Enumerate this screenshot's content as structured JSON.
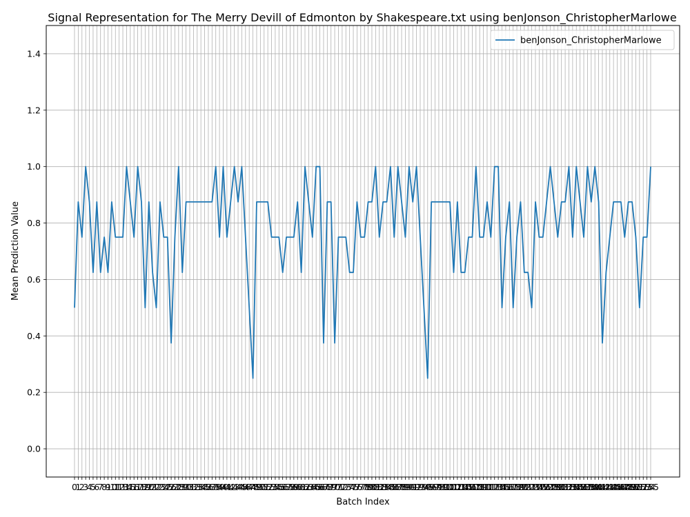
{
  "chart_data": {
    "type": "line",
    "title": "Signal Representation for The Merry Devill of Edmonton by Shakespeare.txt using benJonson_ChristopherMarlowe",
    "xlabel": "Batch Index",
    "ylabel": "Mean Prediction Value",
    "ylim": [
      -0.1,
      1.5
    ],
    "yticks": [
      "0.0",
      "0.2",
      "0.4",
      "0.6",
      "0.8",
      "1.0",
      "1.2",
      "1.4"
    ],
    "grid": true,
    "legend_position": "top-right",
    "line_color": "#1f77b4",
    "grid_color": "#b0b0b0",
    "series": [
      {
        "name": "benJonson_ChristopherMarlowe",
        "values": [
          0.5,
          0.875,
          0.75,
          1.0,
          0.875,
          0.625,
          0.875,
          0.625,
          0.75,
          0.625,
          0.875,
          0.75,
          0.75,
          0.75,
          1.0,
          0.875,
          0.75,
          1.0,
          0.875,
          0.5,
          0.875,
          0.625,
          0.5,
          0.875,
          0.75,
          0.75,
          0.375,
          0.75,
          1.0,
          0.625,
          0.875,
          0.875,
          0.875,
          0.875,
          0.875,
          0.875,
          0.875,
          0.875,
          1.0,
          0.75,
          1.0,
          0.75,
          0.875,
          1.0,
          0.875,
          1.0,
          0.75,
          0.5,
          0.25,
          0.875,
          0.875,
          0.875,
          0.875,
          0.75,
          0.75,
          0.75,
          0.625,
          0.75,
          0.75,
          0.75,
          0.875,
          0.625,
          1.0,
          0.875,
          0.75,
          1.0,
          1.0,
          0.375,
          0.875,
          0.875,
          0.375,
          0.75,
          0.75,
          0.75,
          0.625,
          0.625,
          0.875,
          0.75,
          0.75,
          0.875,
          0.875,
          1.0,
          0.75,
          0.875,
          0.875,
          1.0,
          0.75,
          1.0,
          0.875,
          0.75,
          1.0,
          0.875,
          1.0,
          0.75,
          0.5,
          0.25,
          0.875,
          0.875,
          0.875,
          0.875,
          0.875,
          0.875,
          0.625,
          0.875,
          0.625,
          0.625,
          0.75,
          0.75,
          1.0,
          0.75,
          0.75,
          0.875,
          0.75,
          1.0,
          1.0,
          0.5,
          0.75,
          0.875,
          0.5,
          0.75,
          0.875,
          0.625,
          0.625,
          0.5,
          0.875,
          0.75,
          0.75,
          0.875,
          1.0,
          0.875,
          0.75,
          0.875,
          0.875,
          1.0,
          0.75,
          1.0,
          0.875,
          0.75,
          1.0,
          0.875,
          1.0,
          0.875,
          0.375,
          0.625,
          0.75,
          0.875,
          0.875,
          0.875,
          0.75,
          0.875,
          0.875,
          0.75,
          0.5,
          0.75,
          0.75,
          1.0
        ]
      }
    ]
  }
}
